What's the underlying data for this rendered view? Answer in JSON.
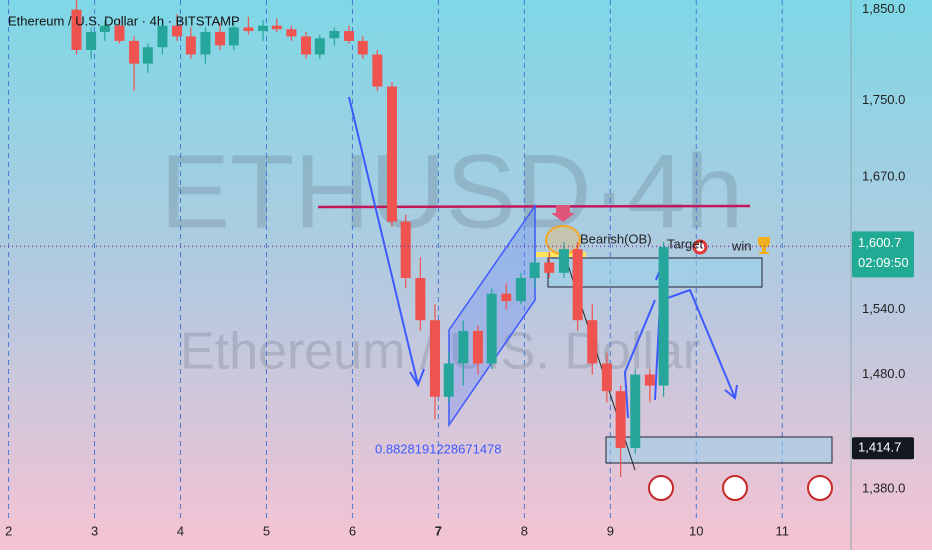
{
  "chart_data": {
    "type": "candlestick",
    "title": "Ethereum / U.S. Dollar · 4h · BITSTAMP",
    "watermark": "ETHUSD·4h",
    "watermark_subtitle": "Ethereum / U.S. Dollar",
    "log_scale": true,
    "xgrid": true,
    "up_color": "#26a69a",
    "down_color": "#ef5350",
    "xlim": [
      1.9,
      11.8
    ],
    "xticks": [
      2,
      3,
      4,
      5,
      6,
      7,
      8,
      9,
      10,
      11
    ],
    "ylim": [
      1354,
      1861
    ],
    "yticks": [
      {
        "value": 1850,
        "label": "1,850.0"
      },
      {
        "value": 1750,
        "label": "1,750.0"
      },
      {
        "value": 1670,
        "label": "1,670.0"
      },
      {
        "value": 1540,
        "label": "1,540.0"
      },
      {
        "value": 1480,
        "label": "1,480.0"
      },
      {
        "value": 1380,
        "label": "1,380.0"
      }
    ],
    "x": [
      2.79,
      2.96,
      3.12,
      3.29,
      3.46,
      3.62,
      3.79,
      3.96,
      4.12,
      4.29,
      4.46,
      4.62,
      4.79,
      4.96,
      5.12,
      5.29,
      5.46,
      5.62,
      5.79,
      5.96,
      6.12,
      6.29,
      6.46,
      6.62,
      6.79,
      6.96,
      7.12,
      7.29,
      7.46,
      7.62,
      7.79,
      7.96,
      8.12,
      8.29,
      8.46,
      8.62,
      8.79,
      8.96,
      9.12,
      9.29,
      9.46,
      9.62
    ],
    "open": [
      1850,
      1805,
      1825,
      1832,
      1815,
      1790,
      1808,
      1832,
      1820,
      1800,
      1825,
      1810,
      1830,
      1826,
      1832,
      1828,
      1820,
      1800,
      1818,
      1826,
      1815,
      1800,
      1765,
      1625,
      1570,
      1530,
      1460,
      1490,
      1520,
      1490,
      1555,
      1548,
      1570,
      1585,
      1575,
      1598,
      1530,
      1490,
      1465,
      1415,
      1480,
      1470
    ],
    "high": [
      1862,
      1830,
      1838,
      1840,
      1820,
      1812,
      1840,
      1845,
      1830,
      1830,
      1835,
      1835,
      1842,
      1838,
      1840,
      1832,
      1825,
      1822,
      1830,
      1832,
      1820,
      1805,
      1770,
      1632,
      1590,
      1545,
      1500,
      1530,
      1525,
      1560,
      1565,
      1575,
      1590,
      1595,
      1605,
      1605,
      1545,
      1500,
      1470,
      1485,
      1485,
      1605
    ],
    "low": [
      1800,
      1795,
      1815,
      1812,
      1760,
      1780,
      1800,
      1815,
      1795,
      1790,
      1805,
      1805,
      1822,
      1815,
      1825,
      1815,
      1795,
      1795,
      1810,
      1812,
      1795,
      1760,
      1620,
      1560,
      1520,
      1440,
      1455,
      1470,
      1480,
      1485,
      1540,
      1545,
      1560,
      1570,
      1570,
      1520,
      1480,
      1455,
      1390,
      1410,
      1455,
      1460
    ],
    "close": [
      1805,
      1825,
      1832,
      1815,
      1790,
      1808,
      1832,
      1820,
      1800,
      1825,
      1810,
      1830,
      1826,
      1832,
      1828,
      1820,
      1800,
      1818,
      1826,
      1815,
      1800,
      1765,
      1625,
      1570,
      1530,
      1460,
      1490,
      1520,
      1490,
      1555,
      1548,
      1570,
      1585,
      1575,
      1598,
      1530,
      1490,
      1465,
      1415,
      1480,
      1470,
      1600
    ],
    "current_price": {
      "value": 1600.7,
      "label": "1,600.7"
    },
    "countdown": "02:09:50",
    "marked_price": {
      "value": 1414.7,
      "label": "1,414.7"
    },
    "annotations": [
      "Bearish(OB)",
      "Target",
      "win",
      "0.8828191228671478"
    ]
  }
}
